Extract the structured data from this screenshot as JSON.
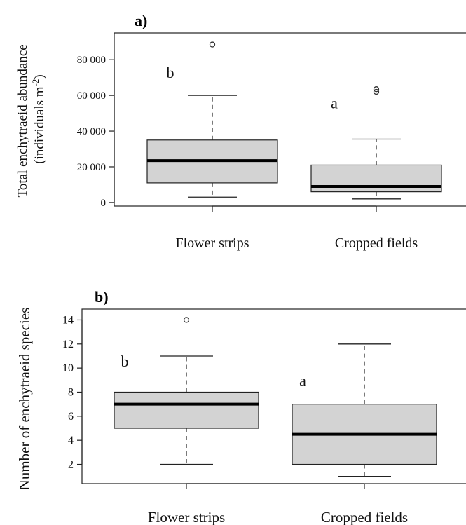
{
  "chart_data": [
    {
      "type": "box",
      "panel_label": "a)",
      "ylabel_line1": "Total enchytraeid abundance",
      "ylabel_line2_prefix": "(individuals m",
      "ylabel_line2_sup": "-2",
      "ylabel_line2_suffix": ")",
      "ylim": [
        -2000,
        95000
      ],
      "yticks": [
        0,
        20000,
        40000,
        60000,
        80000
      ],
      "ytick_labels": [
        "0",
        "20 000",
        "40 000",
        "60 000",
        "80 000"
      ],
      "categories": [
        "Flower strips",
        "Cropped fields"
      ],
      "boxes": [
        {
          "min": 3000,
          "q1": 11000,
          "median": 23500,
          "q3": 35000,
          "max": 60000,
          "outliers": [
            88500
          ],
          "letter": "b",
          "letter_value": 73000
        },
        {
          "min": 2000,
          "q1": 6000,
          "median": 9000,
          "q3": 21000,
          "max": 35500,
          "outliers": [
            62000,
            63500
          ],
          "letter": "a",
          "letter_value": 56000
        }
      ],
      "box_fill": "#d3d3d3"
    },
    {
      "type": "box",
      "panel_label": "b)",
      "ylabel": "Number of enchytraeid species",
      "ylim": [
        0.4,
        14.9
      ],
      "yticks": [
        2,
        4,
        6,
        8,
        10,
        12,
        14
      ],
      "ytick_labels": [
        "2",
        "4",
        "6",
        "8",
        "10",
        "12",
        "14"
      ],
      "categories": [
        "Flower strips",
        "Cropped fields"
      ],
      "boxes": [
        {
          "min": 2,
          "q1": 5,
          "median": 7,
          "q3": 8,
          "max": 11,
          "outliers": [
            14
          ],
          "letter": "b",
          "letter_value": 10.6
        },
        {
          "min": 1,
          "q1": 2,
          "median": 4.5,
          "q3": 7,
          "max": 12,
          "outliers": [],
          "letter": "a",
          "letter_value": 9.0
        }
      ],
      "box_fill": "#d3d3d3"
    }
  ]
}
